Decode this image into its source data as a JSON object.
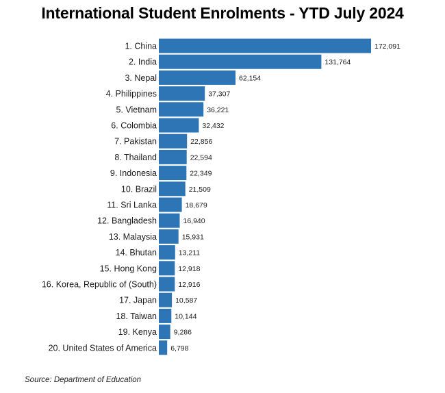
{
  "title": "International Student Enrolments - YTD July 2024",
  "source": "Source: Department of Education",
  "bar_color": "#2E75B6",
  "chart_data": {
    "type": "bar",
    "orientation": "horizontal",
    "title": "International Student Enrolments - YTD July 2024",
    "categories": [
      "1. China",
      "2. India",
      "3. Nepal",
      "4. Philippines",
      "5. Vietnam",
      "6. Colombia",
      "7. Pakistan",
      "8. Thailand",
      "9. Indonesia",
      "10. Brazil",
      "11. Sri Lanka",
      "12. Bangladesh",
      "13. Malaysia",
      "14. Bhutan",
      "15. Hong Kong",
      "16. Korea, Republic of (South)",
      "17. Japan",
      "18. Taiwan",
      "19. Kenya",
      "20. United States of America"
    ],
    "values": [
      172091,
      131764,
      62154,
      37307,
      36221,
      32432,
      22856,
      22594,
      22349,
      21509,
      18679,
      16940,
      15931,
      13211,
      12918,
      12916,
      10587,
      10144,
      9286,
      6798
    ],
    "value_labels": [
      "172,091",
      "131,764",
      "62,154",
      "37,307",
      "36,221",
      "32,432",
      "22,856",
      "22,594",
      "22,349",
      "21,509",
      "18,679",
      "16,940",
      "15,931",
      "13,211",
      "12,918",
      "12,916",
      "10,587",
      "10,144",
      "9,286",
      "6,798"
    ],
    "xlim": [
      0,
      172091
    ],
    "grid": false,
    "legend": "none"
  }
}
